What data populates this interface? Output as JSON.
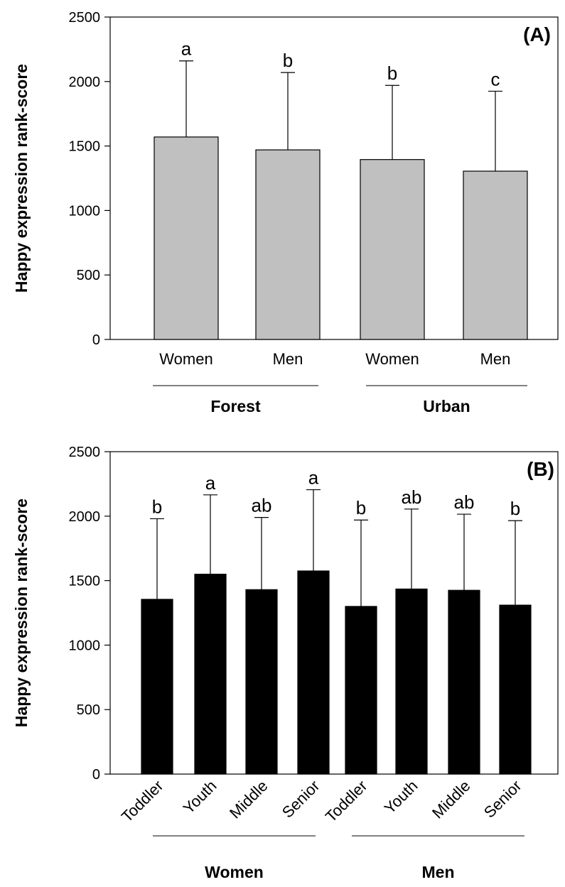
{
  "chart_data": [
    {
      "type": "bar",
      "panel_label": "(A)",
      "ylabel": "Happy expression rank-score",
      "ylim": [
        0,
        2500
      ],
      "yticks": [
        0,
        500,
        1000,
        1500,
        2000,
        2500
      ],
      "bar_color": "#c0c0c0",
      "categories": [
        "Women",
        "Men",
        "Women",
        "Men"
      ],
      "groups": [
        {
          "label": "Forest",
          "categories": [
            0,
            1
          ]
        },
        {
          "label": "Urban",
          "categories": [
            2,
            3
          ]
        }
      ],
      "values": [
        1570,
        1470,
        1395,
        1305
      ],
      "error_upper": [
        2160,
        2070,
        1970,
        1925
      ],
      "significance": [
        "a",
        "b",
        "b",
        "c"
      ]
    },
    {
      "type": "bar",
      "panel_label": "(B)",
      "ylabel": "Happy expression rank-score",
      "ylim": [
        0,
        2500
      ],
      "yticks": [
        0,
        500,
        1000,
        1500,
        2000,
        2500
      ],
      "bar_color": "#000000",
      "categories": [
        "Toddler",
        "Youth",
        "Middle",
        "Senior",
        "Toddler",
        "Youth",
        "Middle",
        "Senior"
      ],
      "groups": [
        {
          "label": "Women",
          "categories": [
            0,
            1,
            2,
            3
          ]
        },
        {
          "label": "Men",
          "categories": [
            4,
            5,
            6,
            7
          ]
        }
      ],
      "values": [
        1355,
        1550,
        1430,
        1575,
        1300,
        1435,
        1425,
        1310
      ],
      "error_upper": [
        1980,
        2165,
        1990,
        2205,
        1970,
        2055,
        2015,
        1965
      ],
      "significance": [
        "b",
        "a",
        "ab",
        "a",
        "b",
        "ab",
        "ab",
        "b"
      ]
    }
  ]
}
